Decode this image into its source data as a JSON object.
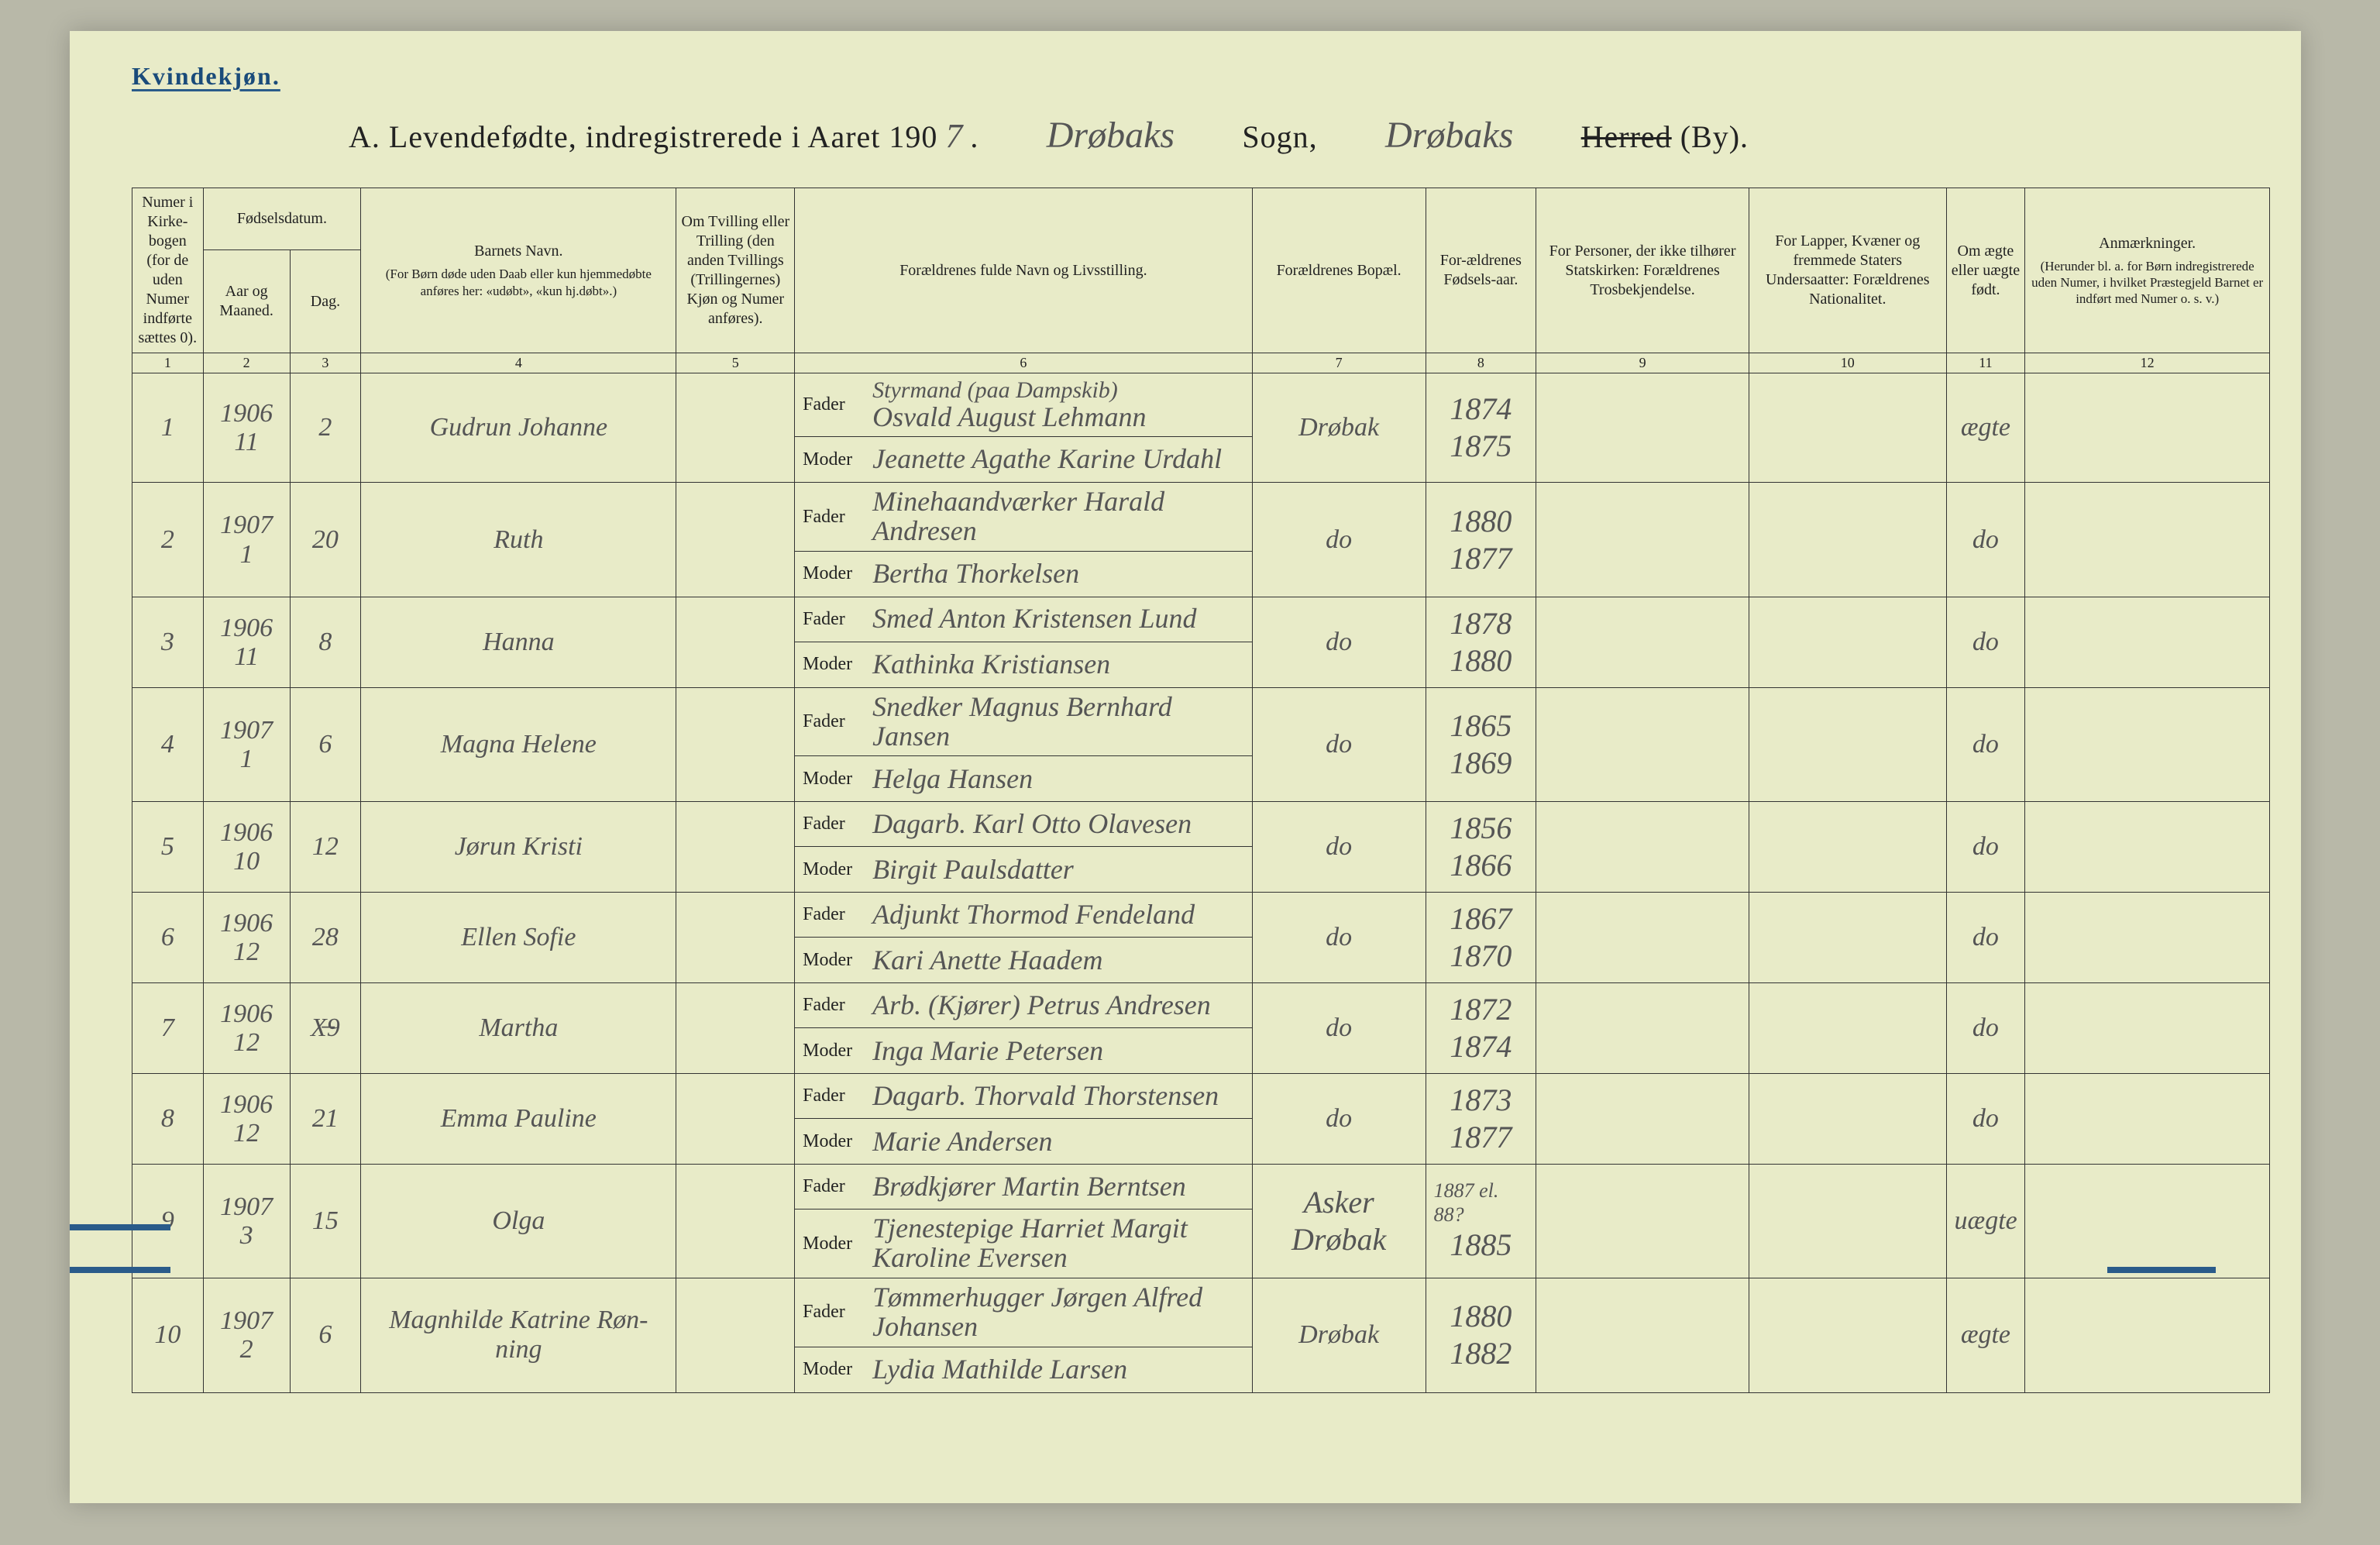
{
  "header": {
    "gender_label": "Kvindekjøn.",
    "title_prefix": "A.  Levendefødte, indregistrerede i Aaret 190",
    "year_last_digit": "7",
    "title_period": ".",
    "sogn_name": "Drøbaks",
    "sogn_label": "Sogn,",
    "herred_name": "Drøbaks",
    "herred_label_strike": "Herred",
    "herred_label_tail": " (By).",
    "fader_label": "Fader",
    "moder_label": "Moder"
  },
  "columns": {
    "c1": "Numer i Kirke-bogen (for de uden Numer indførte sættes 0).",
    "c23_top": "Fødselsdatum.",
    "c2": "Aar og Maaned.",
    "c3": "Dag.",
    "c4_top": "Barnets Navn.",
    "c4_sub": "(For Børn døde uden Daab eller kun hjemmedøbte anføres her: «udøbt», «kun hj.døbt».)",
    "c5": "Om Tvilling eller Trilling (den anden Tvillings (Trillingernes) Kjøn og Numer anføres).",
    "c6": "Forældrenes fulde Navn og Livsstilling.",
    "c7": "Forældrenes Bopæl.",
    "c8": "For-ældrenes Fødsels-aar.",
    "c9": "For Personer, der ikke tilhører Statskirken: Forældrenes Trosbekjendelse.",
    "c10": "For Lapper, Kvæner og fremmede Staters Undersaatter: Forældrenes Nationalitet.",
    "c11": "Om ægte eller uægte født.",
    "c12_top": "Anmærkninger.",
    "c12_sub": "(Herunder bl. a. for Børn indregistrerede uden Numer, i hvilket Præstegjeld Barnet er indført med Numer o. s. v.)",
    "num_labels": [
      "1",
      "2",
      "3",
      "4",
      "5",
      "6",
      "7",
      "8",
      "9",
      "10",
      "11",
      "12"
    ]
  },
  "rows": [
    {
      "n": "1",
      "year": "1906",
      "month": "11",
      "day": "2",
      "child": "Gudrun Johanne",
      "father_top": "Styrmand (paa Dampskib)",
      "father": "Osvald August Lehmann",
      "mother": "Jeanette Agathe Karine Urdahl",
      "bopael": "Drøbak",
      "fy": "1874",
      "my": "1875",
      "legit": "ægte"
    },
    {
      "n": "2",
      "year": "1907",
      "month": "1",
      "day": "20",
      "child": "Ruth",
      "father": "Minehaandværker Harald Andresen",
      "mother": "Bertha Thorkelsen",
      "bopael": "do",
      "fy": "1880",
      "my": "1877",
      "legit": "do"
    },
    {
      "n": "3",
      "year": "1906",
      "month": "11",
      "day": "8",
      "child": "Hanna",
      "father": "Smed Anton Kristensen Lund",
      "mother": "Kathinka Kristiansen",
      "bopael": "do",
      "fy": "1878",
      "my": "1880",
      "legit": "do"
    },
    {
      "n": "4",
      "year": "1907",
      "month": "1",
      "day": "6",
      "child": "Magna Helene",
      "father": "Snedker Magnus Bernhard Jansen",
      "mother": "Helga Hansen",
      "bopael": "do",
      "fy": "1865",
      "my": "1869",
      "legit": "do"
    },
    {
      "n": "5",
      "year": "1906",
      "month": "10",
      "day": "12",
      "child": "Jørun Kristi",
      "father": "Dagarb. Karl Otto Olavesen",
      "mother": "Birgit Paulsdatter",
      "bopael": "do",
      "fy": "1856",
      "my": "1866",
      "legit": "do"
    },
    {
      "n": "6",
      "year": "1906",
      "month": "12",
      "day": "28",
      "child": "Ellen Sofie",
      "father": "Adjunkt Thormod Fendeland",
      "mother": "Kari Anette Haadem",
      "bopael": "do",
      "fy": "1867",
      "my": "1870",
      "legit": "do"
    },
    {
      "n": "7",
      "year": "1906",
      "month": "12",
      "day": "X̶9",
      "child": "Martha",
      "father": "Arb. (Kjører) Petrus Andresen",
      "mother": "Inga Marie Petersen",
      "bopael": "do",
      "fy": "1872",
      "my": "1874",
      "legit": "do"
    },
    {
      "n": "8",
      "year": "1906",
      "month": "12",
      "day": "21",
      "child": "Emma Pauline",
      "father": "Dagarb. Thorvald Thorstensen",
      "mother": "Marie Andersen",
      "bopael": "do",
      "fy": "1873",
      "my": "1877",
      "legit": "do"
    },
    {
      "n": "9",
      "year": "1907",
      "month": "3",
      "day": "15",
      "child": "Olga",
      "father": "Brødkjører Martin Berntsen",
      "mother": "Tjenestepige Harriet Margit Karoline Eversen",
      "bopael_f": "Asker",
      "bopael_m": "Drøbak",
      "fy": "1887 el. 88?",
      "my": "1885",
      "legit": "uægte"
    },
    {
      "n": "10",
      "year": "1907",
      "month": "2",
      "day": "6",
      "child": "Magnhilde Katrine Røn-ning",
      "father": "Tømmerhugger Jørgen Alfred Johansen",
      "mother": "Lydia Mathilde Larsen",
      "bopael": "Drøbak",
      "fy": "1880",
      "my": "1882",
      "legit": "ægte"
    }
  ],
  "style": {
    "page_bg": "#e8ebc8",
    "outer_bg": "#b8b8a8",
    "ink": "#222222",
    "script_ink": "#555555",
    "blue": "#2a5b8a",
    "border": "#333333"
  }
}
